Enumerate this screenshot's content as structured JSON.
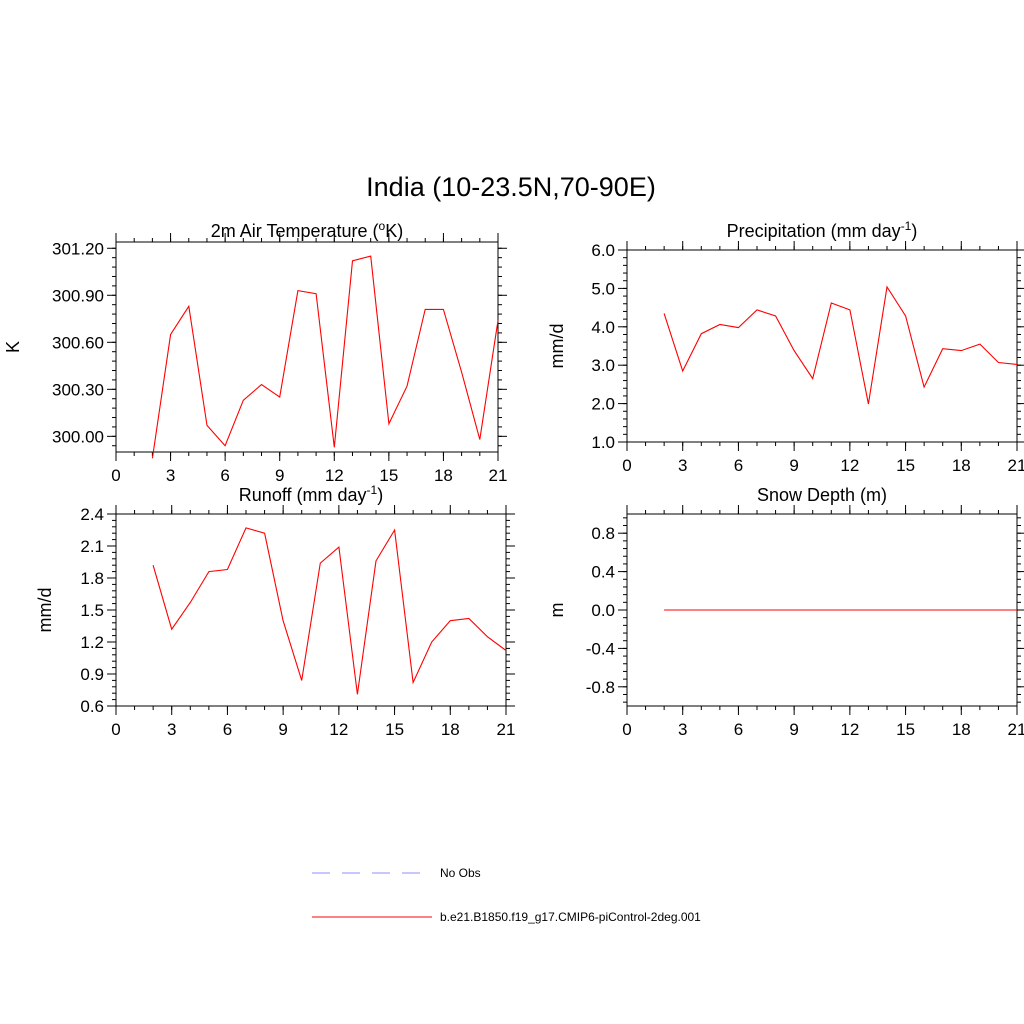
{
  "figure_title": "India (10-23.5N,70-90E)",
  "chart_data": [
    {
      "type": "line",
      "title_main": "2m Air Temperature (",
      "title_sup": "o",
      "title_end": "K)",
      "ylabel": "K",
      "xlim": [
        0,
        21
      ],
      "xticks": [
        0,
        3,
        6,
        9,
        12,
        15,
        18,
        21
      ],
      "ylim": [
        299.9,
        301.24
      ],
      "yticks": [
        300.0,
        300.3,
        300.6,
        300.9,
        301.2
      ],
      "ytick_labels": [
        "300.00",
        "300.30",
        "300.60",
        "300.90",
        "301.20"
      ],
      "yminor_step": 0.06,
      "series": [
        {
          "x": [
            2,
            3,
            4,
            5,
            6,
            7,
            8,
            9,
            10,
            11,
            12,
            13,
            14,
            15,
            16,
            17,
            18,
            19,
            20,
            21
          ],
          "values": [
            299.86,
            300.65,
            300.83,
            300.07,
            299.94,
            300.23,
            300.33,
            300.25,
            300.93,
            300.91,
            299.93,
            301.12,
            301.15,
            300.08,
            300.32,
            300.81,
            300.81,
            300.41,
            299.98,
            300.74
          ],
          "color": "#ff0000"
        }
      ]
    },
    {
      "type": "line",
      "title_main": "Precipitation (mm day",
      "title_sup": "-1",
      "title_end": ")",
      "ylabel": "mm/d",
      "xlim": [
        0,
        21
      ],
      "xticks": [
        0,
        3,
        6,
        9,
        12,
        15,
        18,
        21
      ],
      "ylim": [
        1.0,
        6.0
      ],
      "yticks": [
        1.0,
        2.0,
        3.0,
        4.0,
        5.0,
        6.0
      ],
      "ytick_labels": [
        "1.0",
        "2.0",
        "3.0",
        "4.0",
        "5.0",
        "6.0"
      ],
      "yminor_step": 0.2,
      "series": [
        {
          "x": [
            2,
            3,
            4,
            5,
            6,
            7,
            8,
            9,
            10,
            11,
            12,
            13,
            14,
            15,
            16,
            17,
            18,
            19,
            20,
            21
          ],
          "values": [
            4.35,
            2.85,
            3.82,
            4.06,
            3.98,
            4.44,
            4.28,
            3.38,
            2.65,
            4.62,
            4.44,
            1.99,
            5.04,
            4.28,
            2.43,
            3.43,
            3.38,
            3.55,
            3.07,
            3.02
          ],
          "color": "#ff0000"
        }
      ]
    },
    {
      "type": "line",
      "title_main": "Runoff (mm day",
      "title_sup": "-1",
      "title_end": ")",
      "ylabel": "mm/d",
      "xlim": [
        0,
        21
      ],
      "xticks": [
        0,
        3,
        6,
        9,
        12,
        15,
        18,
        21
      ],
      "ylim": [
        0.6,
        2.4
      ],
      "yticks": [
        0.6,
        0.9,
        1.2,
        1.5,
        1.8,
        2.1,
        2.4
      ],
      "ytick_labels": [
        "0.6",
        "0.9",
        "1.2",
        "1.5",
        "1.8",
        "2.1",
        "2.4"
      ],
      "yminor_step": 0.06,
      "series": [
        {
          "x": [
            2,
            3,
            4,
            5,
            6,
            7,
            8,
            9,
            10,
            11,
            12,
            13,
            14,
            15,
            16,
            17,
            18,
            19,
            20,
            21
          ],
          "values": [
            1.92,
            1.32,
            1.57,
            1.86,
            1.88,
            2.27,
            2.22,
            1.4,
            0.84,
            1.94,
            2.09,
            0.71,
            1.96,
            2.25,
            0.82,
            1.2,
            1.4,
            1.42,
            1.25,
            1.12
          ],
          "color": "#ff0000"
        }
      ]
    },
    {
      "type": "line",
      "title_main": "Snow Depth (m)",
      "title_sup": "",
      "title_end": "",
      "ylabel": "m",
      "xlim": [
        0,
        21
      ],
      "xticks": [
        0,
        3,
        6,
        9,
        12,
        15,
        18,
        21
      ],
      "ylim": [
        -1.0,
        1.0
      ],
      "yticks": [
        -0.8,
        -0.4,
        0.0,
        0.4,
        0.8
      ],
      "ytick_labels": [
        "-0.8",
        "-0.4",
        "0.0",
        "0.4",
        "0.8"
      ],
      "yminor_step": 0.08,
      "series": [
        {
          "x": [
            2,
            3,
            4,
            5,
            6,
            7,
            8,
            9,
            10,
            11,
            12,
            13,
            14,
            15,
            16,
            17,
            18,
            19,
            20,
            21
          ],
          "values": [
            0,
            0,
            0,
            0,
            0,
            0,
            0,
            0,
            0,
            0,
            0,
            0,
            0,
            0,
            0,
            0,
            0,
            0,
            0,
            0
          ],
          "color": "#ff0000"
        }
      ]
    }
  ],
  "legend": [
    {
      "label": "No Obs",
      "color": "#8f8fff",
      "style": "dashed"
    },
    {
      "label": "b.e21.B1850.f19_g17.CMIP6-piControl-2deg.001",
      "color": "#ff0000",
      "style": "solid"
    }
  ]
}
